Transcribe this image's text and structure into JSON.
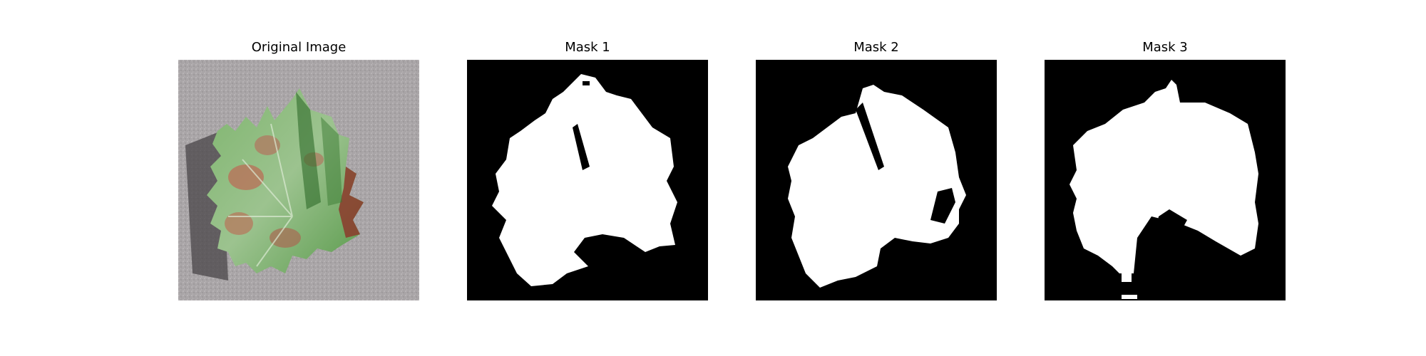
{
  "panels": [
    {
      "title": "Original Image",
      "kind": "photo"
    },
    {
      "title": "Mask 1",
      "kind": "mask"
    },
    {
      "title": "Mask 2",
      "kind": "mask"
    },
    {
      "title": "Mask 3",
      "kind": "mask"
    }
  ],
  "colors": {
    "mask_foreground": "#ffffff",
    "mask_background": "#000000",
    "photo_surface": "#a8a4a6",
    "leaf_green": "#6fa860",
    "leaf_rust": "#b8735a"
  }
}
